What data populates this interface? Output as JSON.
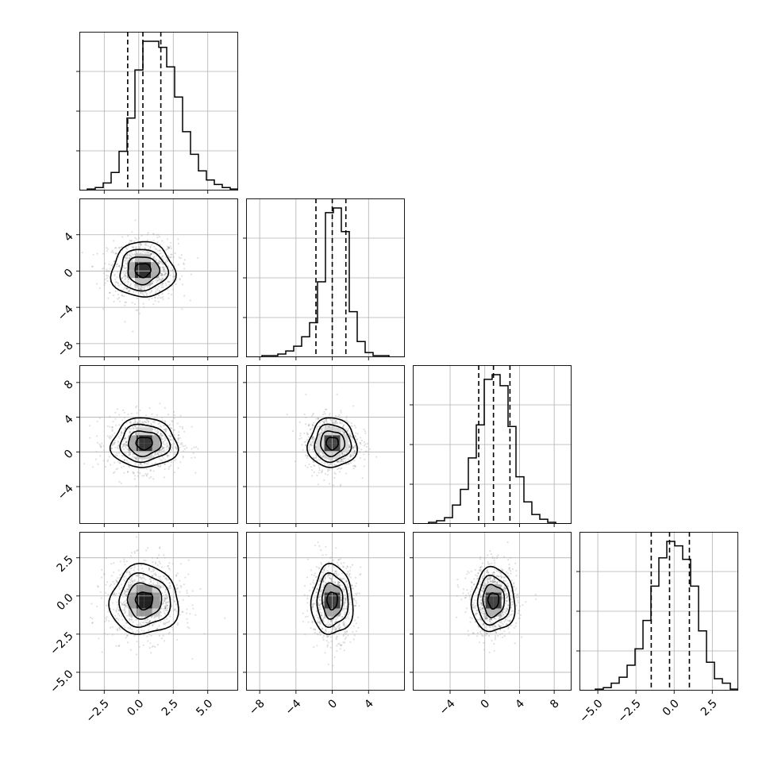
{
  "chart_data": {
    "type": "corner",
    "n_params": 4,
    "axis_ranges": [
      [
        -4.3,
        7.2
      ],
      [
        -9.5,
        8.0
      ],
      [
        -8.3,
        10.0
      ],
      [
        -6.2,
        4.2
      ]
    ],
    "ticks": [
      [
        -2.5,
        0.0,
        2.5,
        5.0
      ],
      [
        -8,
        -4,
        0,
        4
      ],
      [
        -4,
        0,
        4,
        8
      ],
      [
        -5.0,
        -2.5,
        0.0,
        2.5
      ]
    ],
    "tick_labels": [
      [
        "−2.5",
        "0.0",
        "2.5",
        "5.0"
      ],
      [
        "−8",
        "−4",
        "0",
        "4"
      ],
      [
        "−4",
        "0",
        "4",
        "8"
      ],
      [
        "−5.0",
        "−2.5",
        "0.0",
        "2.5"
      ]
    ],
    "grid": true,
    "histograms": [
      {
        "param": 0,
        "edges_start": -4.3,
        "bin_width": 0.575,
        "counts": [
          0,
          1,
          2,
          5,
          12,
          26,
          48,
          80,
          99,
          99,
          95,
          82,
          62,
          39,
          24,
          13,
          7,
          4,
          2,
          1
        ],
        "quantiles": [
          -0.8,
          0.3,
          1.6
        ]
      },
      {
        "param": 1,
        "edges_start": -9.5,
        "bin_width": 0.875,
        "counts": [
          0,
          0,
          1,
          1,
          2,
          4,
          7,
          13,
          22,
          48,
          92,
          95,
          80,
          29,
          10,
          3,
          1,
          1,
          0,
          0
        ],
        "quantiles": [
          -1.8,
          0.0,
          1.5
        ]
      },
      {
        "param": 2,
        "edges_start": -8.3,
        "bin_width": 0.915,
        "counts": [
          0,
          0,
          1,
          2,
          4,
          12,
          22,
          42,
          63,
          92,
          95,
          88,
          62,
          30,
          14,
          6,
          3,
          1,
          0,
          0
        ],
        "quantiles": [
          -0.7,
          1.0,
          2.9
        ]
      },
      {
        "param": 3,
        "edges_start": -6.2,
        "bin_width": 0.52,
        "counts": [
          0,
          0,
          1,
          2,
          5,
          9,
          17,
          28,
          47,
          70,
          89,
          100,
          97,
          88,
          70,
          40,
          19,
          8,
          5,
          1
        ],
        "quantiles": [
          -1.5,
          -0.3,
          1.0
        ]
      }
    ],
    "pairs": [
      {
        "x_param": 0,
        "y_param": 1,
        "center": [
          0.3,
          0.1
        ],
        "sigma": [
          1.2,
          1.6
        ],
        "levels": [
          0.5,
          1.0,
          1.5,
          2.0
        ]
      },
      {
        "x_param": 0,
        "y_param": 2,
        "center": [
          0.4,
          1.0
        ],
        "sigma": [
          1.25,
          1.5
        ],
        "levels": [
          0.5,
          1.0,
          1.5,
          2.0
        ]
      },
      {
        "x_param": 1,
        "y_param": 2,
        "center": [
          0.0,
          1.0
        ],
        "sigma": [
          1.4,
          1.5
        ],
        "levels": [
          0.5,
          1.0,
          1.5,
          2.0
        ]
      },
      {
        "x_param": 0,
        "y_param": 3,
        "center": [
          0.4,
          -0.3
        ],
        "sigma": [
          1.3,
          1.2
        ],
        "levels": [
          0.5,
          1.0,
          1.5,
          2.0
        ]
      },
      {
        "x_param": 1,
        "y_param": 3,
        "center": [
          0.0,
          -0.3
        ],
        "sigma": [
          1.2,
          1.2
        ],
        "levels": [
          0.5,
          1.0,
          1.5,
          2.0
        ]
      },
      {
        "x_param": 2,
        "y_param": 3,
        "center": [
          1.0,
          -0.3
        ],
        "sigma": [
          1.3,
          1.1
        ],
        "levels": [
          0.5,
          1.0,
          1.5,
          2.0
        ]
      }
    ]
  }
}
